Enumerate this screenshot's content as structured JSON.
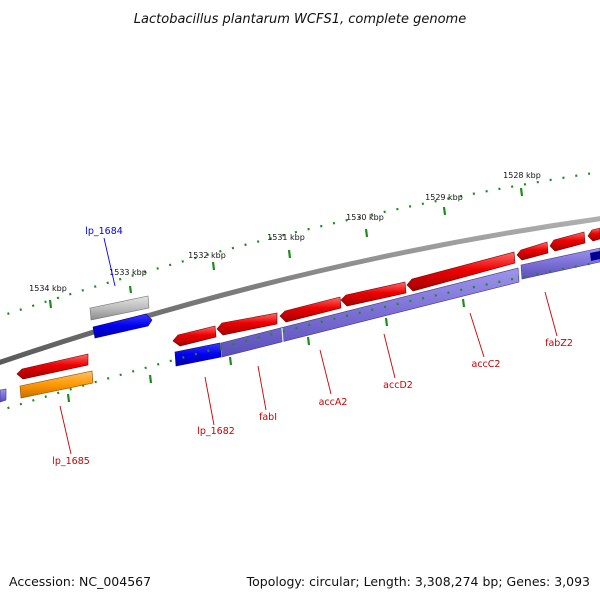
{
  "title": "Lactobacillus plantarum WCFS1, complete genome",
  "footer": {
    "accession": "Accession: NC_004567",
    "topology": "Topology: circular; Length: 3,308,274 bp; Genes: 3,093"
  },
  "ticks": [
    "1528 kbp",
    "1529 kbp",
    "1530 kbp",
    "1531 kbp",
    "1532 kbp",
    "1533 kbp",
    "1534 kbp"
  ],
  "genes": [
    {
      "name": "lp_1684",
      "color": "#0000ee"
    },
    {
      "name": "lp_1685",
      "color": "#cc0000"
    },
    {
      "name": "lp_1682",
      "color": "#cc0000"
    },
    {
      "name": "fabI",
      "color": "#cc0000"
    },
    {
      "name": "accA2",
      "color": "#cc0000"
    },
    {
      "name": "accD2",
      "color": "#cc0000"
    },
    {
      "name": "accC2",
      "color": "#cc0000"
    },
    {
      "name": "fabZ2",
      "color": "#cc0000"
    }
  ],
  "colors": {
    "tick_track": "#1a8c1a",
    "backbone": "#808080",
    "cds_forward": "#ee0000",
    "cds_reverse": "#0000ee",
    "gene_track": "#7b6fd6",
    "cds_other": "#ff9900",
    "cds_gray": "#b8b8b8"
  }
}
